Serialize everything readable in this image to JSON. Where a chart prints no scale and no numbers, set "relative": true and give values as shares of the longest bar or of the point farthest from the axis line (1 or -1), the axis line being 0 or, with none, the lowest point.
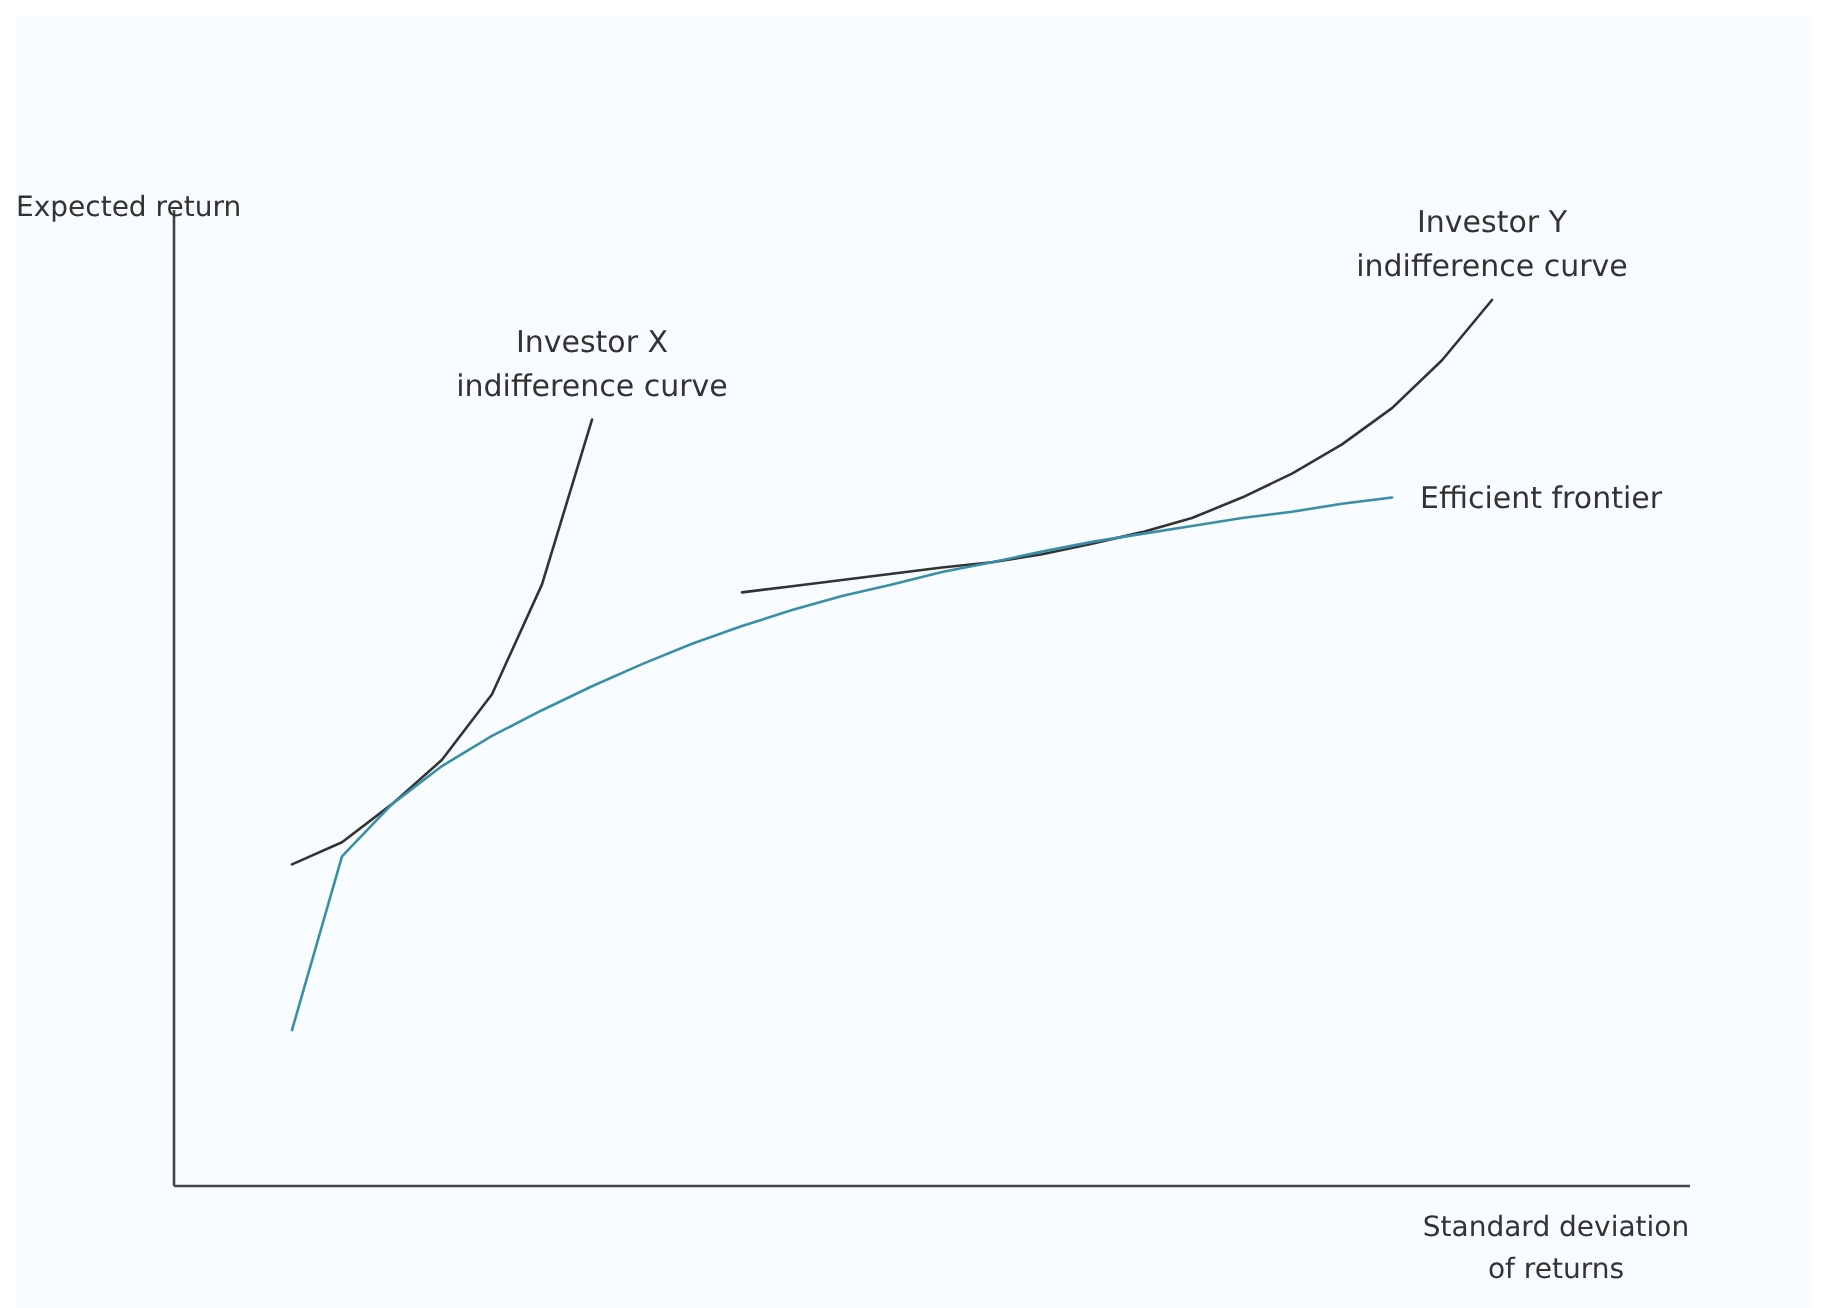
{
  "chart_data": {
    "type": "line",
    "relative": true,
    "xlabel": "Standard deviation\nof returns",
    "ylabel": "Expected return",
    "line_style": "solid",
    "categories": [
      null,
      null,
      null,
      null,
      null,
      null,
      null,
      null,
      null,
      null,
      null,
      null,
      null,
      null,
      null,
      null,
      null,
      null,
      null,
      null,
      null,
      null,
      null,
      null,
      null
    ],
    "series": [
      {
        "name": "Investor X\nindifference curve",
        "color": "#333333",
        "values": [
          0.363,
          0.388,
          0.431,
          0.481,
          0.555,
          0.679,
          0.865,
          null,
          null,
          null,
          null,
          null,
          null,
          null,
          null,
          null,
          null,
          null,
          null,
          null,
          null,
          null,
          null,
          null,
          null
        ]
      },
      {
        "name": "Investor Y\nindifference curve",
        "color": "#333333",
        "values": [
          null,
          null,
          null,
          null,
          null,
          null,
          null,
          null,
          null,
          0.67,
          0.677,
          0.684,
          0.691,
          0.698,
          0.704,
          0.713,
          0.725,
          0.738,
          0.754,
          0.777,
          0.804,
          0.837,
          0.878,
          0.932,
          1
        ]
      },
      {
        "name": "Efficient frontier",
        "color": "#3a8fa6",
        "values": [
          0.176,
          0.372,
          0.431,
          0.474,
          0.508,
          0.537,
          0.564,
          0.589,
          0.612,
          0.632,
          0.65,
          0.666,
          0.679,
          0.693,
          0.704,
          0.716,
          0.727,
          0.736,
          0.745,
          0.754,
          0.761,
          0.77,
          0.777,
          null,
          null
        ]
      }
    ]
  }
}
